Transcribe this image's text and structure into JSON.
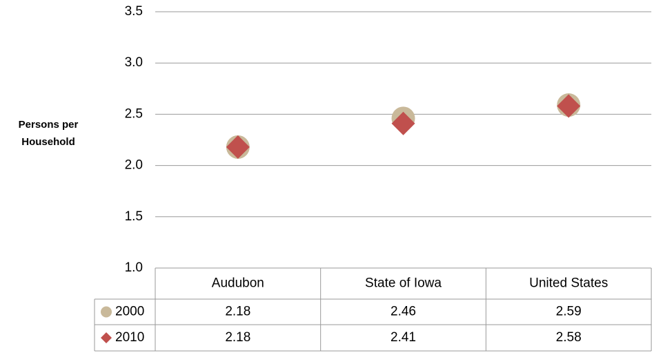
{
  "chart_data": {
    "type": "scatter",
    "y_label": "Persons per Household",
    "categories": [
      "Audubon",
      "State of Iowa",
      "United States"
    ],
    "series": [
      {
        "name": "2000",
        "color": "#c9b99a",
        "marker": "circle",
        "values": [
          2.18,
          2.46,
          2.59
        ]
      },
      {
        "name": "2010",
        "color": "#c0504d",
        "marker": "diamond",
        "values": [
          2.18,
          2.41,
          2.58
        ]
      }
    ],
    "ylim": [
      1.0,
      3.5
    ],
    "yticks": [
      {
        "value": 1,
        "label": "1.0"
      },
      1.5,
      {
        "value": 2,
        "label": "2.0"
      },
      2.5,
      {
        "value": 3,
        "label": "3.0"
      },
      3.5
    ],
    "grid": true,
    "data_table": true
  }
}
